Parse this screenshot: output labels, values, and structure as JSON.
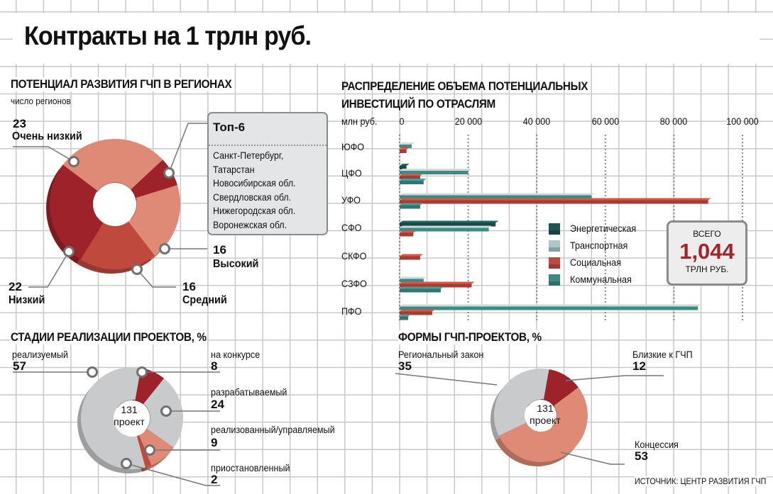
{
  "title": "Контракты на 1 трлн руб.",
  "source": "ИСТОЧНИК: ЦЕНТР РАЗВИТИЯ ГЧП",
  "colors": {
    "salmon": "#df8a76",
    "red": "#c0493e",
    "darkred": "#9e2229",
    "grey": "#c9cacc",
    "teal_dark": "#1d5652",
    "teal_light": "#a9c9c7",
    "teal": "#3d8a84"
  },
  "chart_data": [
    {
      "type": "pie",
      "title": "ПОТЕНЦИАЛ РАЗВИТИЯ ГЧП В РЕГИОНАХ",
      "subtitle": "число регионов",
      "slices": [
        {
          "name": "Топ-6",
          "value": 6,
          "color": "#9e2229"
        },
        {
          "name": "Высокий",
          "value": 16,
          "color": "#df8a76"
        },
        {
          "name": "Средний",
          "value": 16,
          "color": "#c0493e"
        },
        {
          "name": "Низкий",
          "value": 22,
          "color": "#9e2229"
        },
        {
          "name": "Очень низкий",
          "value": 23,
          "color": "#df8a76"
        }
      ],
      "callout": {
        "title": "Топ-6",
        "items": [
          "Санкт-Петербург,",
          "Татарстан",
          "Новосибирская обл.",
          "Свердловская обл.",
          "Нижегородская обл.",
          "Воронежская обл."
        ]
      }
    },
    {
      "type": "bar",
      "title": "РАСПРЕДЕЛЕНИЕ ОБЪЕМА ПОТЕНЦИАЛЬНЫХ ИНВЕСТИЦИЙ ПО ОТРАСЛЯМ",
      "xlabel": "млн руб.",
      "orientation": "horizontal",
      "xlim": [
        0,
        100000
      ],
      "ticks": [
        "0",
        "20 000",
        "40 000",
        "60 000",
        "80 000",
        "100 000"
      ],
      "tick_values": [
        0,
        20000,
        40000,
        60000,
        80000,
        100000
      ],
      "categories": [
        "ЮФО",
        "ЦФО",
        "УФО",
        "СФО",
        "СКФО",
        "СЗФО",
        "ПФО"
      ],
      "series": [
        {
          "name": "Энергетическая",
          "color": "#1d5652",
          "values": [
            0,
            2000,
            0,
            28000,
            0,
            0,
            0
          ]
        },
        {
          "name": "Транспортная",
          "color": "#a9c9c7",
          "values": [
            3500,
            20000,
            56000,
            26000,
            0,
            7000,
            87000
          ]
        },
        {
          "name": "Социальная",
          "color": "#c0493e",
          "values": [
            2000,
            6000,
            90000,
            4000,
            6000,
            21000,
            9500
          ]
        },
        {
          "name": "Коммунальная",
          "color": "#3d8a84",
          "values": [
            0,
            7000,
            6000,
            0,
            0,
            12000,
            2500
          ]
        }
      ],
      "total": {
        "label": "ВСЕГО",
        "value": "1,044",
        "unit": "ТРЛН РУБ."
      }
    },
    {
      "type": "pie",
      "title": "СТАДИИ РЕАЛИЗАЦИИ ПРОЕКТОВ, %",
      "center": {
        "value": "131",
        "label": "проект"
      },
      "slices": [
        {
          "name": "на конкурсе",
          "value": 8,
          "color": "#9e2229"
        },
        {
          "name": "разрабатываемый",
          "value": 24,
          "color": "#c9cacc"
        },
        {
          "name": "реализованный/управляемый",
          "value": 9,
          "color": "#df8a76"
        },
        {
          "name": "приостановленный",
          "value": 2,
          "color": "#c0493e"
        },
        {
          "name": "реализуемый",
          "value": 57,
          "color": "#c9cacc"
        }
      ]
    },
    {
      "type": "pie",
      "title": "ФОРМЫ ГЧП-ПРОЕКТОВ, %",
      "center": {
        "value": "131",
        "label": "проект"
      },
      "slices": [
        {
          "name": "Близкие к ГЧП",
          "value": 12,
          "color": "#9e2229"
        },
        {
          "name": "Концессия",
          "value": 53,
          "color": "#df8a76"
        },
        {
          "name": "Региональный закон",
          "value": 35,
          "color": "#c9cacc"
        }
      ]
    }
  ]
}
